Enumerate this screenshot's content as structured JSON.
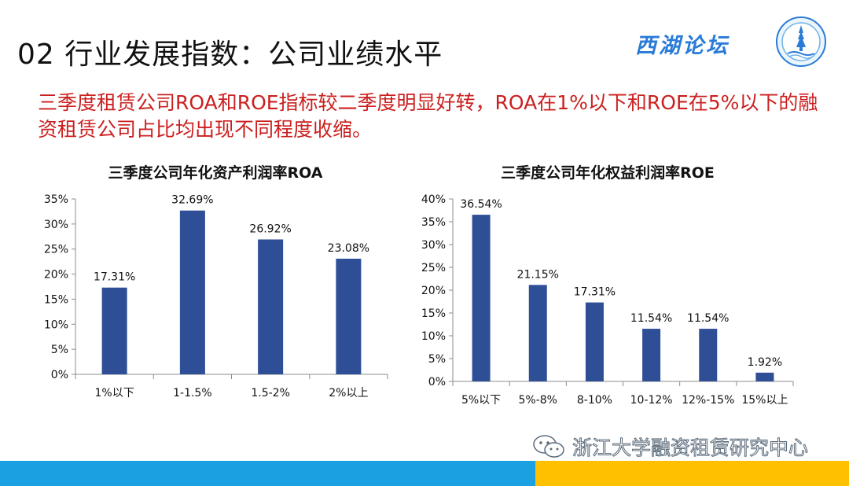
{
  "slide": {
    "title": "02 行业发展指数：公司业绩水平",
    "subtitle": "三季度租赁公司ROA和ROE指标较二季度明显好转，ROA在1%以下和ROE在5%以下的融资租赁公司占比均出现不同程度收缩。"
  },
  "brand": {
    "name": "西湖论坛"
  },
  "footer": {
    "text": "浙江大学融资租赁研究中心"
  },
  "colors": {
    "bar": "#2e4e96",
    "subtitle": "#cc1f1f",
    "footer_blue": "#1ba1e2",
    "footer_yellow": "#ffc000"
  },
  "chart_data": [
    {
      "type": "bar",
      "title": "三季度公司年化资产利润率ROA",
      "categories": [
        "1%以下",
        "1-1.5%",
        "1.5-2%",
        "2%以上"
      ],
      "values": [
        17.31,
        32.69,
        26.92,
        23.08
      ],
      "data_labels": [
        "17.31%",
        "32.69%",
        "26.92%",
        "23.08%"
      ],
      "ylim": [
        0,
        35
      ],
      "y_ticks": [
        "0%",
        "5%",
        "10%",
        "15%",
        "20%",
        "25%",
        "30%",
        "35%"
      ],
      "grid": false,
      "legend": "none"
    },
    {
      "type": "bar",
      "title": "三季度公司年化权益利润率ROE",
      "categories": [
        "5%以下",
        "5%-8%",
        "8-10%",
        "10-12%",
        "12%-15%",
        "15%以上"
      ],
      "values": [
        36.54,
        21.15,
        17.31,
        11.54,
        11.54,
        1.92
      ],
      "data_labels": [
        "36.54%",
        "21.15%",
        "17.31%",
        "11.54%",
        "11.54%",
        "1.92%"
      ],
      "ylim": [
        0,
        40
      ],
      "y_ticks": [
        "0%",
        "5%",
        "10%",
        "15%",
        "20%",
        "25%",
        "30%",
        "35%",
        "40%"
      ],
      "grid": false,
      "legend": "none"
    }
  ]
}
